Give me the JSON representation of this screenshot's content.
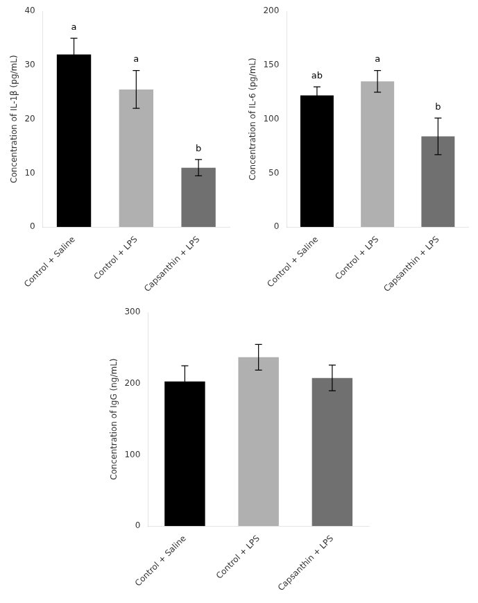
{
  "chart_data": [
    {
      "type": "bar",
      "categories": [
        "Control + Saline",
        "Control + LPS",
        "Capsanthin + LPS"
      ],
      "values": [
        32.0,
        25.5,
        11.0
      ],
      "errors": [
        3.0,
        3.5,
        1.5
      ],
      "colors": [
        "#000000",
        "#b0b0b0",
        "#707070"
      ],
      "ylabel": "Concentration of IL-1β (pg/mL)",
      "ylim": [
        0,
        40
      ],
      "yticks": [
        0,
        10,
        20,
        30,
        40
      ],
      "annotations": [
        "a",
        "a",
        "b"
      ],
      "grid": false
    },
    {
      "type": "bar",
      "categories": [
        "Control + Saline",
        "Control + LPS",
        "Capsanthin + LPS"
      ],
      "values": [
        122.0,
        135.0,
        84.0
      ],
      "errors": [
        8.0,
        10.0,
        17.0
      ],
      "colors": [
        "#000000",
        "#b0b0b0",
        "#707070"
      ],
      "ylabel": "Concentration of IL-6 (pg/mL)",
      "ylim": [
        0,
        200
      ],
      "yticks": [
        0,
        50,
        100,
        150,
        200
      ],
      "annotations": [
        "ab",
        "a",
        "b"
      ],
      "grid": false
    },
    {
      "type": "bar",
      "categories": [
        "Control + Saline",
        "Control + LPS",
        "Capsanthin + LPS"
      ],
      "values": [
        203.0,
        237.0,
        208.0
      ],
      "errors": [
        22.0,
        18.0,
        18.0
      ],
      "colors": [
        "#000000",
        "#b0b0b0",
        "#707070"
      ],
      "ylabel": "Concentration of IgG (ng/mL)",
      "ylim": [
        0,
        300
      ],
      "yticks": [
        0,
        100,
        200,
        300
      ],
      "grid": false
    }
  ]
}
